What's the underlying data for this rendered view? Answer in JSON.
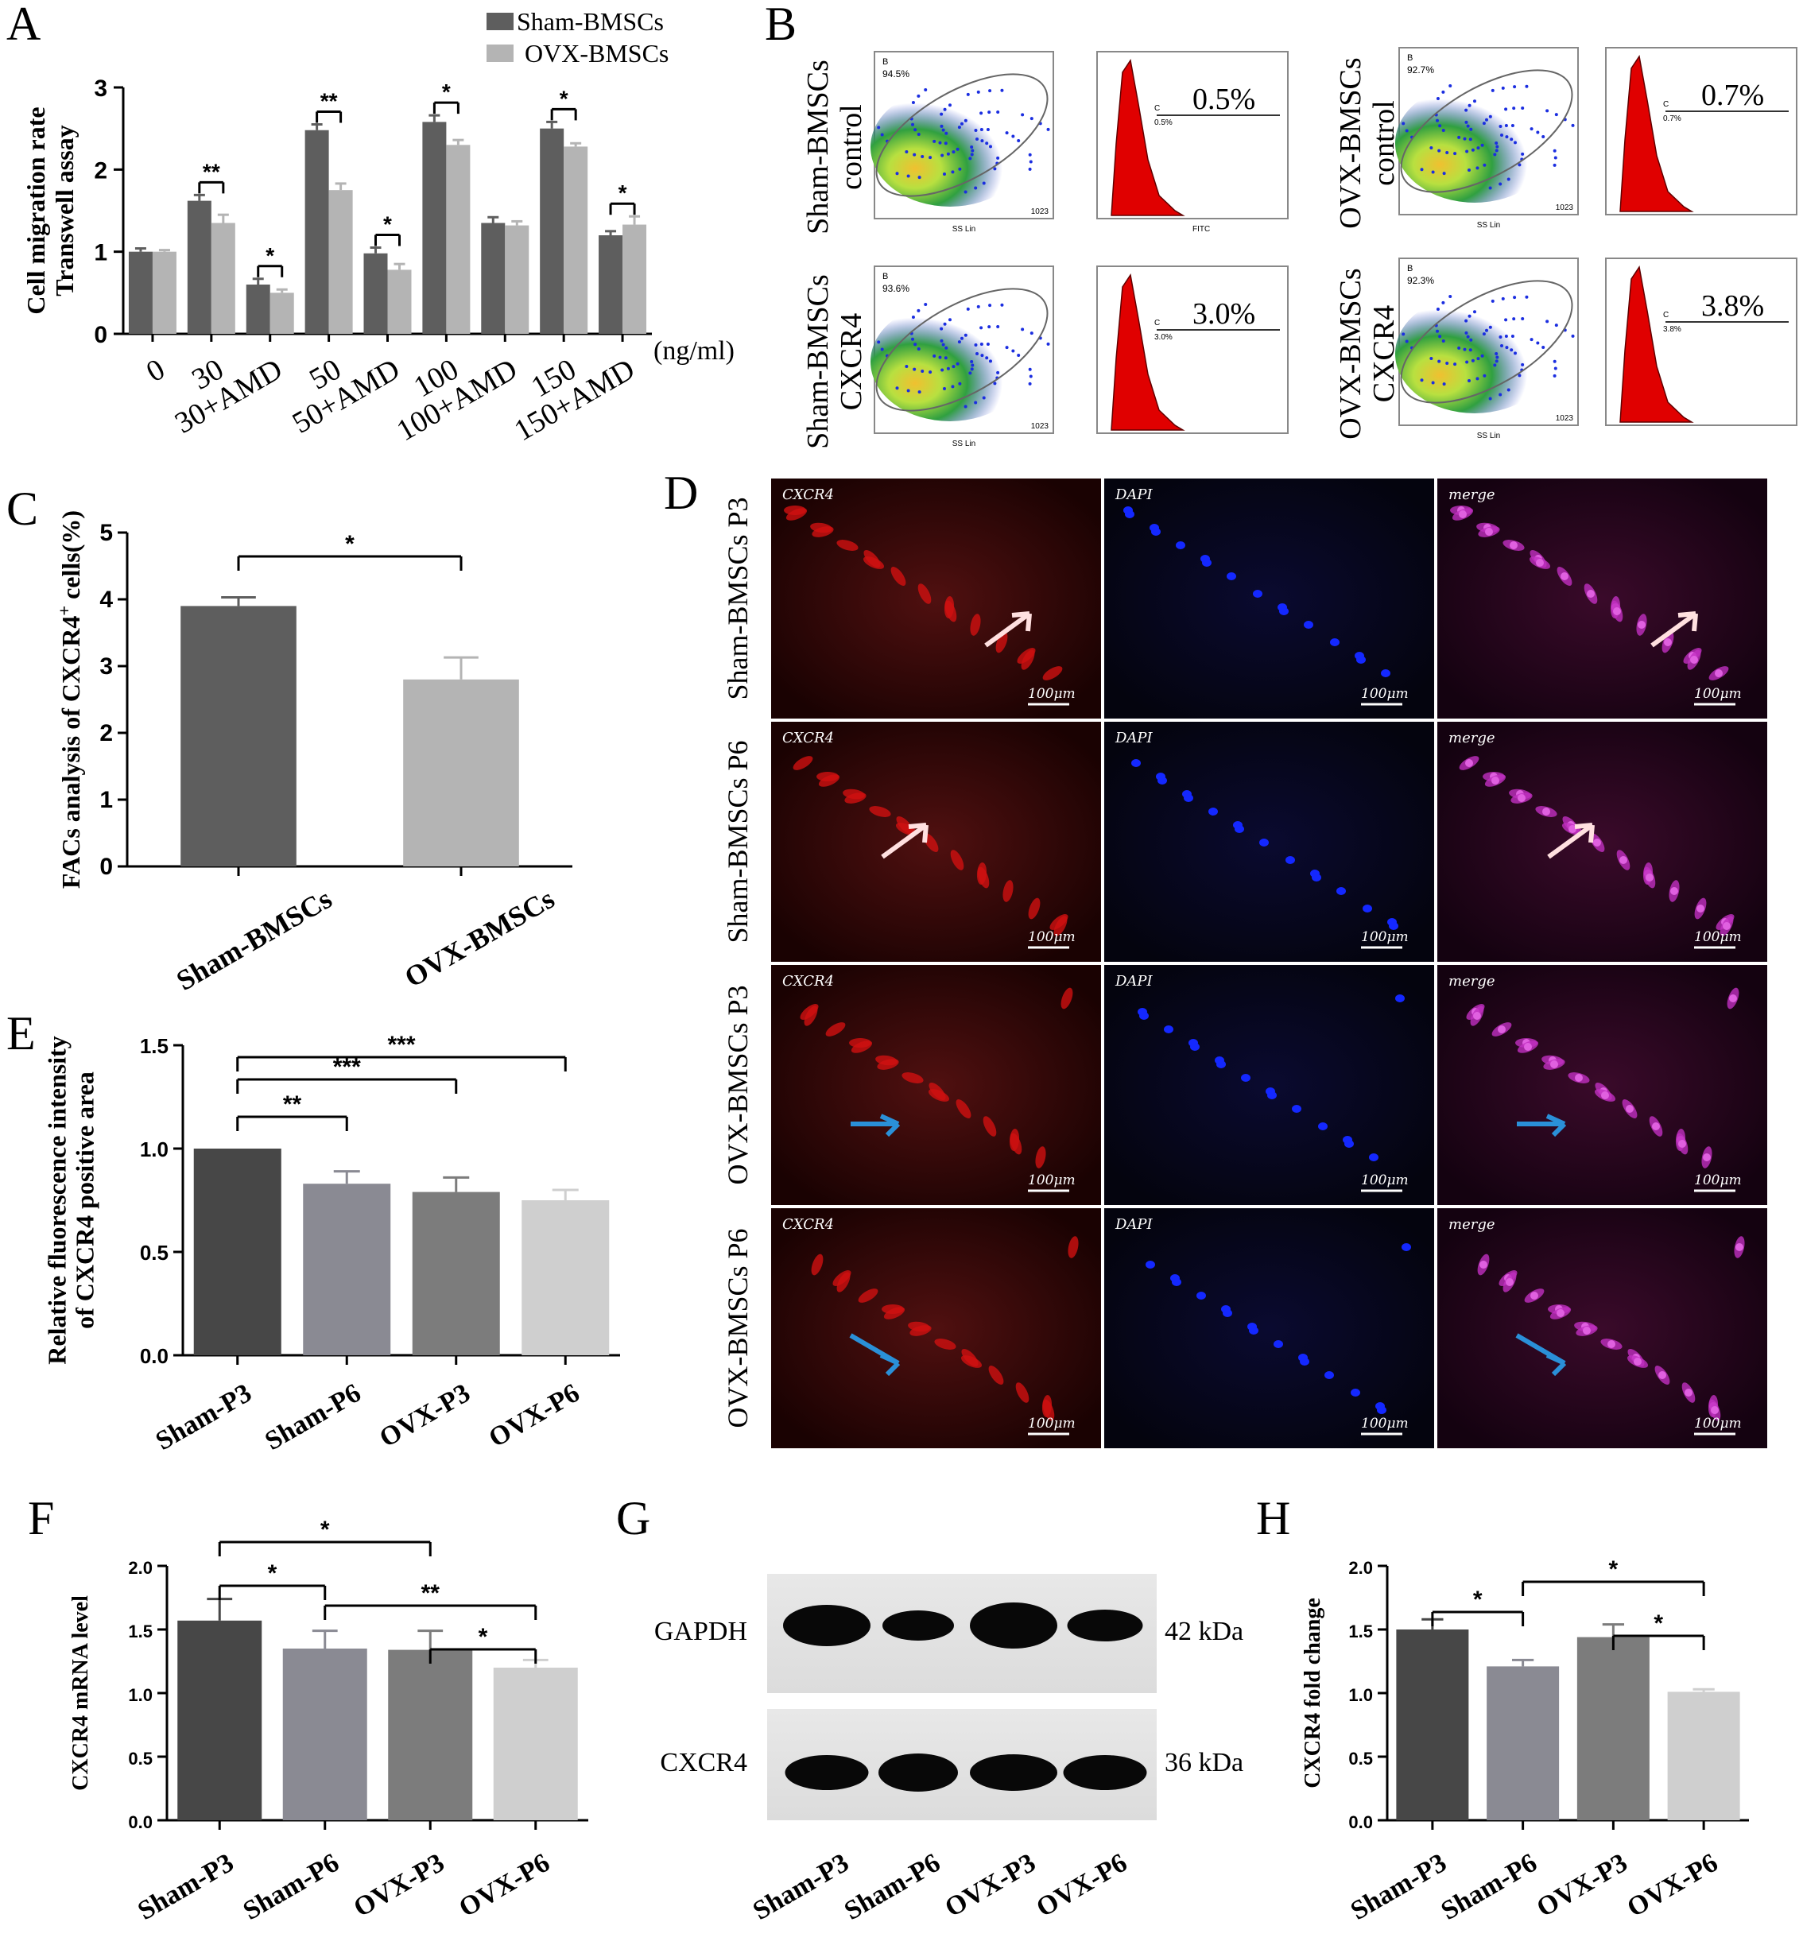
{
  "panels": {
    "A": {
      "label": "A"
    },
    "B": {
      "label": "B"
    },
    "C": {
      "label": "C"
    },
    "D": {
      "label": "D"
    },
    "E": {
      "label": "E"
    },
    "F": {
      "label": "F"
    },
    "G": {
      "label": "G"
    },
    "H": {
      "label": "H"
    }
  },
  "colors": {
    "sham": "#5e5e5e",
    "ovx": "#b4b4b4",
    "sham_p3": "#474747",
    "sham_p6": "#8a8a93",
    "ovx_p3": "#7c7c7c",
    "ovx_p6": "#cfcfcf",
    "histogram": "#e00000",
    "fluor_red": "#d01010",
    "fluor_blue": "#1428ff",
    "fluor_merge": "#c030c0",
    "arrow_white": "#ffe0e0",
    "arrow_blue": "#2a90d8"
  },
  "chart_data": [
    {
      "panel": "A",
      "type": "bar",
      "ylabel": "Cell migration rate\nTranswell assay",
      "xlabel": "(ng/ml)",
      "ylim": [
        0,
        3
      ],
      "yticks": [
        0,
        1,
        2,
        3
      ],
      "categories": [
        "0",
        "30",
        "30+AMD",
        "50",
        "50+AMD",
        "100",
        "100+AMD",
        "150",
        "150+AMD"
      ],
      "series": [
        {
          "name": "Sham-BMSCs",
          "values": [
            1.0,
            1.62,
            0.6,
            2.48,
            0.98,
            2.58,
            1.35,
            2.5,
            1.2
          ],
          "errors": [
            0.04,
            0.07,
            0.07,
            0.07,
            0.07,
            0.08,
            0.07,
            0.08,
            0.05
          ]
        },
        {
          "name": "OVX-BMSCs",
          "values": [
            1.0,
            1.35,
            0.5,
            1.75,
            0.78,
            2.3,
            1.32,
            2.28,
            1.33
          ],
          "errors": [
            0.02,
            0.1,
            0.04,
            0.08,
            0.07,
            0.06,
            0.05,
            0.04,
            0.1
          ]
        }
      ],
      "significance": [
        "",
        "**",
        "*",
        "**",
        "*",
        "*",
        "",
        "*",
        "*"
      ]
    },
    {
      "panel": "C",
      "type": "bar",
      "ylabel": "FACs analysis of CXCR4",
      "ylabel_sup": "+",
      "ylabel_tail": " cells(%)",
      "ylim": [
        0,
        5
      ],
      "yticks": [
        0,
        1,
        2,
        3,
        4,
        5
      ],
      "categories": [
        "Sham-BMSCs",
        "OVX-BMSCs"
      ],
      "values": [
        3.9,
        2.8
      ],
      "errors": [
        0.13,
        0.33
      ],
      "brackets": [
        {
          "from": 0,
          "to": 1,
          "label": "*"
        }
      ]
    },
    {
      "panel": "E",
      "type": "bar",
      "ylabel": "Relative fluorescence intensity\nof CXCR4 positive area",
      "ylim": [
        0,
        1.5
      ],
      "yticks": [
        "0.0",
        "0.5",
        "1.0",
        "1.5"
      ],
      "categories": [
        "Sham-P3",
        "Sham-P6",
        "OVX-P3",
        "OVX-P6"
      ],
      "values": [
        1.0,
        0.83,
        0.79,
        0.75
      ],
      "errors": [
        0.0,
        0.06,
        0.07,
        0.05
      ],
      "brackets": [
        {
          "from": 0,
          "to": 1,
          "label": "**"
        },
        {
          "from": 0,
          "to": 2,
          "label": "***"
        },
        {
          "from": 0,
          "to": 3,
          "label": "***"
        }
      ]
    },
    {
      "panel": "F",
      "type": "bar",
      "ylabel": "CXCR4 mRNA level",
      "ylim": [
        0,
        2
      ],
      "yticks": [
        "0.0",
        "0.5",
        "1.0",
        "1.5",
        "2.0"
      ],
      "categories": [
        "Sham-P3",
        "Sham-P6",
        "OVX-P3",
        "OVX-P6"
      ],
      "values": [
        1.57,
        1.35,
        1.34,
        1.2
      ],
      "errors": [
        0.17,
        0.14,
        0.15,
        0.06
      ],
      "brackets": [
        {
          "from": 0,
          "to": 1,
          "label": "*"
        },
        {
          "from": 0,
          "to": 2,
          "label": "*"
        },
        {
          "from": 1,
          "to": 3,
          "label": "**"
        },
        {
          "from": 2,
          "to": 3,
          "label": "*"
        }
      ]
    },
    {
      "panel": "H",
      "type": "bar",
      "ylabel": "CXCR4 fold change",
      "ylim": [
        0,
        2
      ],
      "yticks": [
        "0.0",
        "0.5",
        "1.0",
        "1.5",
        "2.0"
      ],
      "categories": [
        "Sham-P3",
        "Sham-P6",
        "OVX-P3",
        "OVX-P6"
      ],
      "values": [
        1.5,
        1.21,
        1.44,
        1.01
      ],
      "errors": [
        0.08,
        0.05,
        0.1,
        0.02
      ],
      "brackets": [
        {
          "from": 0,
          "to": 1,
          "label": "*"
        },
        {
          "from": 1,
          "to": 3,
          "label": "*"
        },
        {
          "from": 2,
          "to": 3,
          "label": "*"
        }
      ]
    }
  ],
  "flow": {
    "rows": [
      {
        "label_line1": "Sham-BMSCs",
        "label_line2": "control",
        "gate": "94.5%",
        "hist_pct": "0.5%",
        "hist_small": "0.5%"
      },
      {
        "label_line1": "Sham-BMSCs",
        "label_line2": "CXCR4",
        "gate": "93.6%",
        "hist_pct": "3.0%",
        "hist_small": "3.0%"
      },
      {
        "label_line1": "OVX-BMSCs",
        "label_line2": "control",
        "gate": "92.7%",
        "hist_pct": "0.7%",
        "hist_small": "0.7%"
      },
      {
        "label_line1": "OVX-BMSCs",
        "label_line2": "CXCR4",
        "gate": "92.3%",
        "hist_pct": "3.8%",
        "hist_small": "3.8%"
      }
    ],
    "gate_name": "B",
    "hist_gate_name": "C",
    "x_axis": "SS Lin",
    "x_axis_max": "1023",
    "hist_axis": "FITC"
  },
  "microscopy": {
    "rows": [
      "Sham-BMSCs P3",
      "Sham-BMSCs P6",
      "OVX-BMSCs P3",
      "OVX-BMSCs P6"
    ],
    "columns": [
      "CXCR4",
      "DAPI",
      "merge"
    ],
    "scale_bar": "100μm"
  },
  "blot": {
    "bands": [
      {
        "name": "GAPDH",
        "size": "42 kDa"
      },
      {
        "name": "CXCR4",
        "size": "36 kDa"
      }
    ],
    "lanes": [
      "Sham-P3",
      "Sham-P6",
      "OVX-P3",
      "OVX-P6"
    ]
  }
}
